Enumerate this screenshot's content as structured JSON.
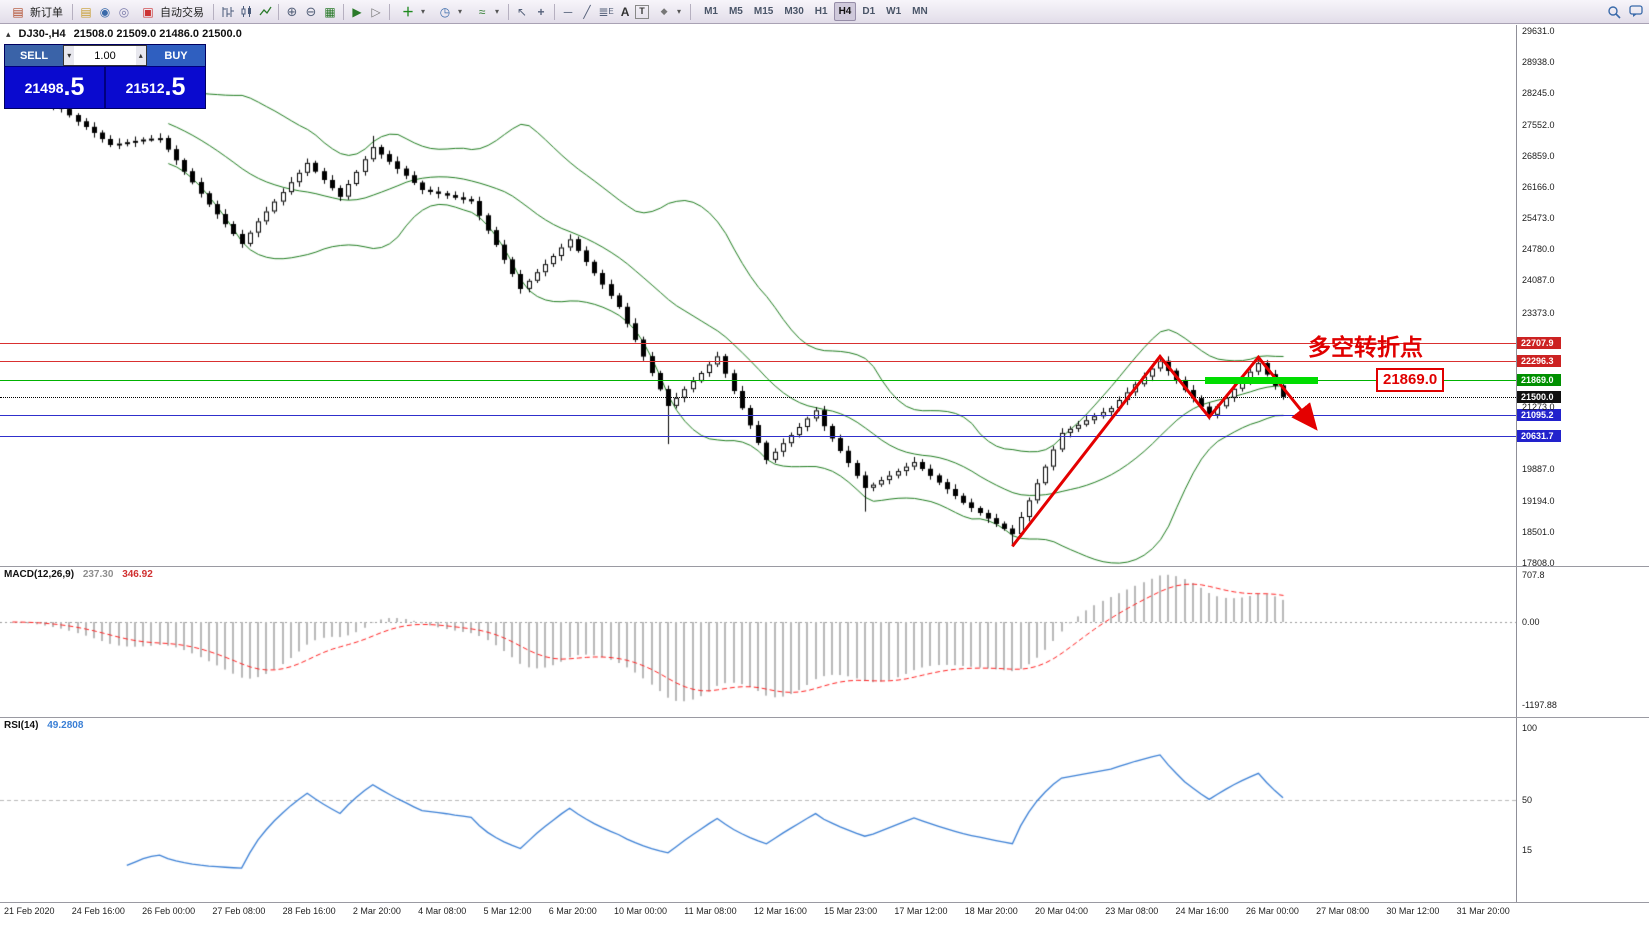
{
  "toolbar": {
    "new_order_label": "新订单",
    "autotrading_label": "自动交易",
    "timeframes": [
      [
        "M1",
        false
      ],
      [
        "M5",
        false
      ],
      [
        "M15",
        false
      ],
      [
        "M30",
        false
      ],
      [
        "H1",
        false
      ],
      [
        "H4",
        true
      ],
      [
        "D1",
        false
      ],
      [
        "W1",
        false
      ],
      [
        "MN",
        false
      ]
    ]
  },
  "one_click": {
    "sell_label": "SELL",
    "buy_label": "BUY",
    "volume": "1.00",
    "sell_price_int": "21498",
    "sell_price_frac": ".5",
    "buy_price_int": "21512",
    "buy_price_frac": ".5"
  },
  "chart": {
    "title": "DJ30-,H4",
    "ohlc": "21508.0 21509.0 21486.0 21500.0",
    "annotation_text": "多空转折点",
    "annotation_price": "21869.0"
  },
  "indicators": {
    "macd_name": "MACD(12,26,9)",
    "macd_v1": "237.30",
    "macd_v2": "346.92",
    "macd_scale": [
      "707.8",
      "0.00",
      "-1197.88"
    ],
    "rsi_name": "RSI(14)",
    "rsi_value": "49.2808",
    "rsi_scale": [
      "100",
      "50",
      "15"
    ]
  },
  "chart_data": {
    "type": "candlestick",
    "symbol": "DJ30-",
    "timeframe": "H4",
    "y_range": [
      17808,
      29631
    ],
    "price_axis_labels": [
      29631.0,
      28938.0,
      28245.0,
      27552.0,
      26859.0,
      26166.0,
      25473.0,
      24780.0,
      24087.0,
      23373.0,
      21273.0,
      19887.0,
      19194.0,
      18501.0,
      17808.0
    ],
    "first_open": 28400,
    "closes": [
      28350,
      28280,
      28200,
      28150,
      28060,
      27980,
      27900,
      27760,
      27620,
      27500,
      27370,
      27230,
      27100,
      27130,
      27160,
      27190,
      27220,
      27240,
      27250,
      27000,
      26760,
      26510,
      26270,
      26020,
      25780,
      25560,
      25340,
      25120,
      24900,
      25150,
      25400,
      25620,
      25840,
      26050,
      26270,
      26480,
      26700,
      26510,
      26320,
      26140,
      25950,
      26230,
      26500,
      26780,
      27050,
      26890,
      26730,
      26570,
      26420,
      26260,
      26100,
      26060,
      26020,
      25980,
      25930,
      25890,
      25850,
      25530,
      25200,
      24880,
      24550,
      24230,
      23900,
      24080,
      24270,
      24450,
      24630,
      24820,
      25000,
      24750,
      24500,
      24250,
      24000,
      23750,
      23500,
      23130,
      22770,
      22400,
      22030,
      21670,
      21300,
      21480,
      21670,
      21850,
      22030,
      22220,
      22400,
      22020,
      21630,
      21250,
      20870,
      20480,
      20100,
      20280,
      20470,
      20650,
      20830,
      21020,
      21200,
      20850,
      20580,
      20300,
      20030,
      19750,
      19480,
      19550,
      19650,
      19750,
      19850,
      19950,
      20050,
      19900,
      19750,
      19600,
      19450,
      19300,
      19150,
      19030,
      18920,
      18800,
      18680,
      18570,
      18450,
      18830,
      19200,
      19580,
      19950,
      20330,
      20700,
      20790,
      20880,
      20980,
      21070,
      21160,
      21250,
      21430,
      21600,
      21780,
      21950,
      22130,
      22300,
      22080,
      21870,
      21650,
      21470,
      21280,
      21100,
      21290,
      21480,
      21680,
      21870,
      22060,
      22250,
      22000,
      21750,
      21500
    ],
    "special_lows": {
      "80": 20450,
      "104": 18950,
      "122": 18180
    },
    "special_highs": {
      "44": 27300,
      "140": 22430,
      "152": 22400
    },
    "bollinger": {
      "period": 20,
      "deviation": 2.0,
      "color": "#1b7a1b"
    },
    "hlines": [
      {
        "price": 22707.9,
        "color": "#d93030",
        "style": "solid",
        "badge": "#cc2222"
      },
      {
        "price": 22296.3,
        "color": "#d93030",
        "style": "solid",
        "badge": "#cc2222"
      },
      {
        "price": 21869.0,
        "color": "#00b200",
        "style": "solid",
        "badge": "#009000"
      },
      {
        "price": 21500.0,
        "color": "#000000",
        "style": "dotted",
        "badge": "#101010"
      },
      {
        "price": 21095.2,
        "color": "#3030cc",
        "style": "solid",
        "badge": "#2222cc"
      },
      {
        "price": 20631.7,
        "color": "#3030cc",
        "style": "solid",
        "badge": "#2222cc"
      }
    ],
    "bid_price": 21500.0,
    "zigzag": {
      "anchors": [
        [
          122,
          18180
        ],
        [
          140,
          22400
        ],
        [
          146,
          21050
        ],
        [
          152,
          22380
        ]
      ],
      "arrow_end": [
        159,
        20800
      ],
      "color": "#e40000"
    },
    "highlight_segment": {
      "price": 21869.0,
      "from_bar": 145.5,
      "to_bar": 159.3,
      "color": "#00dd00"
    },
    "macd": {
      "fast": 12,
      "slow": 26,
      "signal": 9,
      "hist_color": "#b8b8b8",
      "signal_color": "#ff2020"
    },
    "rsi": {
      "period": 14,
      "color": "#3a7fd5",
      "level": 50
    },
    "time_labels": [
      "21 Feb 2020",
      "24 Feb 16:00",
      "26 Feb 00:00",
      "27 Feb 08:00",
      "28 Feb 16:00",
      "2 Mar 20:00",
      "4 Mar 08:00",
      "5 Mar 12:00",
      "6 Mar 20:00",
      "10 Mar 00:00",
      "11 Mar 08:00",
      "12 Mar 16:00",
      "15 Mar 23:00",
      "17 Mar 12:00",
      "18 Mar 20:00",
      "20 Mar 04:00",
      "23 Mar 08:00",
      "24 Mar 16:00",
      "26 Mar 00:00",
      "27 Mar 08:00",
      "30 Mar 12:00",
      "31 Mar 20:00"
    ]
  }
}
